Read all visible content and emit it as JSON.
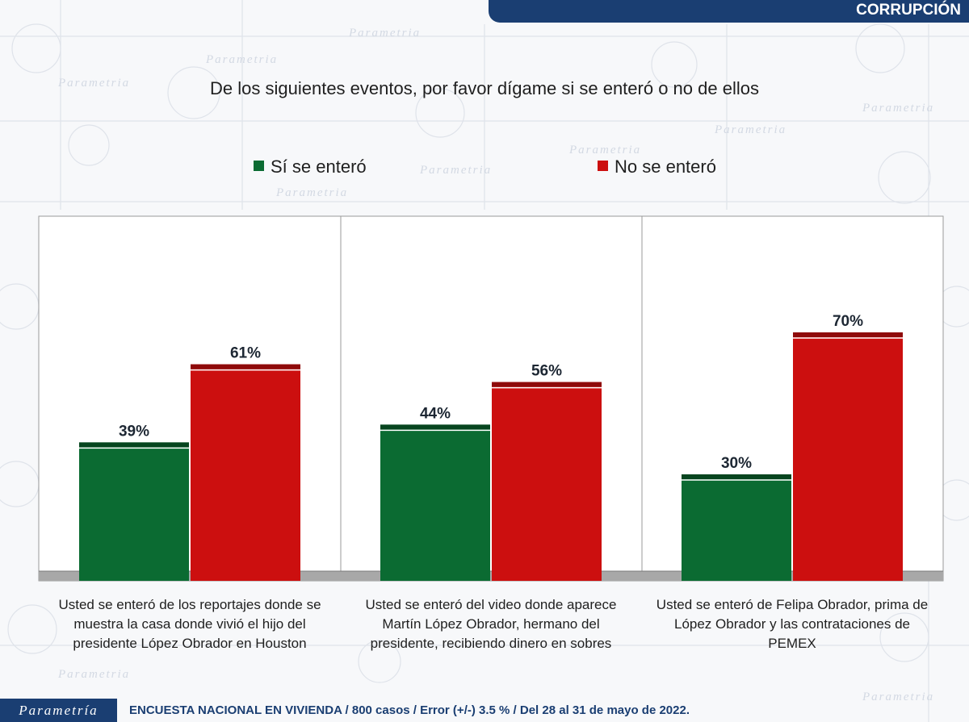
{
  "header": {
    "section_label": "CORRUPCIÓN"
  },
  "watermark": "Parametria",
  "chart_data": {
    "type": "bar",
    "title": "De los siguientes eventos, por favor dígame si se enteró o no de ellos",
    "categories": [
      "Usted se enteró de los reportajes donde se muestra la casa donde vivió el hijo del presidente López Obrador en Houston",
      "Usted se enteró del video donde aparece Martín López Obrador, hermano del presidente, recibiendo dinero en sobres",
      "Usted se enteró de Felipa Obrador, prima de López Obrador y las contrataciones de PEMEX"
    ],
    "series": [
      {
        "name": "Sí se enteró",
        "values": [
          39,
          44,
          30
        ],
        "color": "#0b6b32"
      },
      {
        "name": "No se enteró",
        "values": [
          61,
          56,
          70
        ],
        "color": "#cc0f0f"
      }
    ],
    "value_suffix": "%",
    "ylim": [
      0,
      100
    ],
    "legend_position": "top",
    "xlabel": "",
    "ylabel": ""
  },
  "footer": {
    "brand": "Parametría",
    "text": "ENCUESTA NACIONAL EN VIVIENDA / 800 casos / Error (+/-) 3.5 % / Del 28 al 31 de mayo de 2022."
  }
}
